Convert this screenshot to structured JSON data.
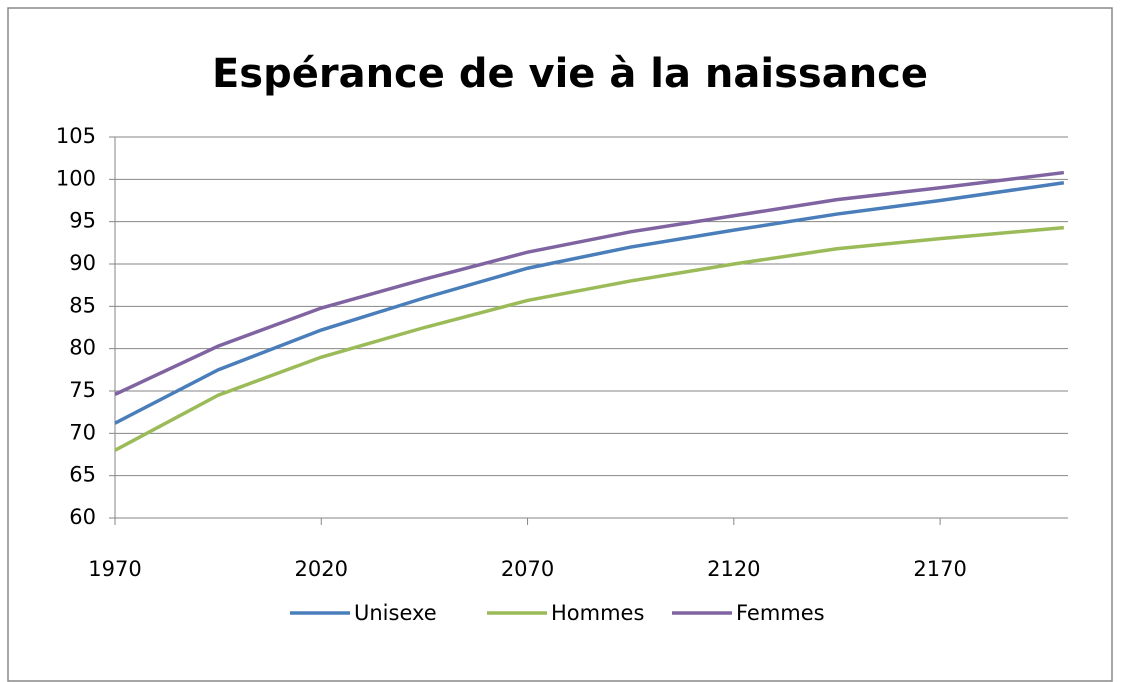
{
  "chart_data": {
    "type": "line",
    "title": "Espérance de vie à la naissance",
    "x": [
      1970,
      1995,
      2020,
      2045,
      2070,
      2095,
      2120,
      2145,
      2170,
      2200
    ],
    "series": [
      {
        "name": "Unisexe",
        "color": "#4a7ebb",
        "values": [
          71.2,
          77.5,
          82.2,
          86.0,
          89.5,
          92.0,
          94.0,
          95.9,
          97.5,
          99.6
        ]
      },
      {
        "name": "Hommes",
        "color": "#9bbb59",
        "values": [
          68.0,
          74.5,
          79.0,
          82.5,
          85.7,
          88.0,
          90.0,
          91.8,
          93.0,
          94.3
        ]
      },
      {
        "name": "Femmes",
        "color": "#8064a2",
        "values": [
          74.6,
          80.3,
          84.8,
          88.2,
          91.4,
          93.8,
          95.7,
          97.6,
          99.0,
          100.8
        ]
      }
    ],
    "xlim": [
      1970,
      2201
    ],
    "xticks": [
      1970,
      2020,
      2070,
      2120,
      2170
    ],
    "ylim": [
      60,
      105
    ],
    "yticks": [
      60,
      65,
      70,
      75,
      80,
      85,
      90,
      95,
      100,
      105
    ],
    "grid": true,
    "legend": "bottom"
  }
}
